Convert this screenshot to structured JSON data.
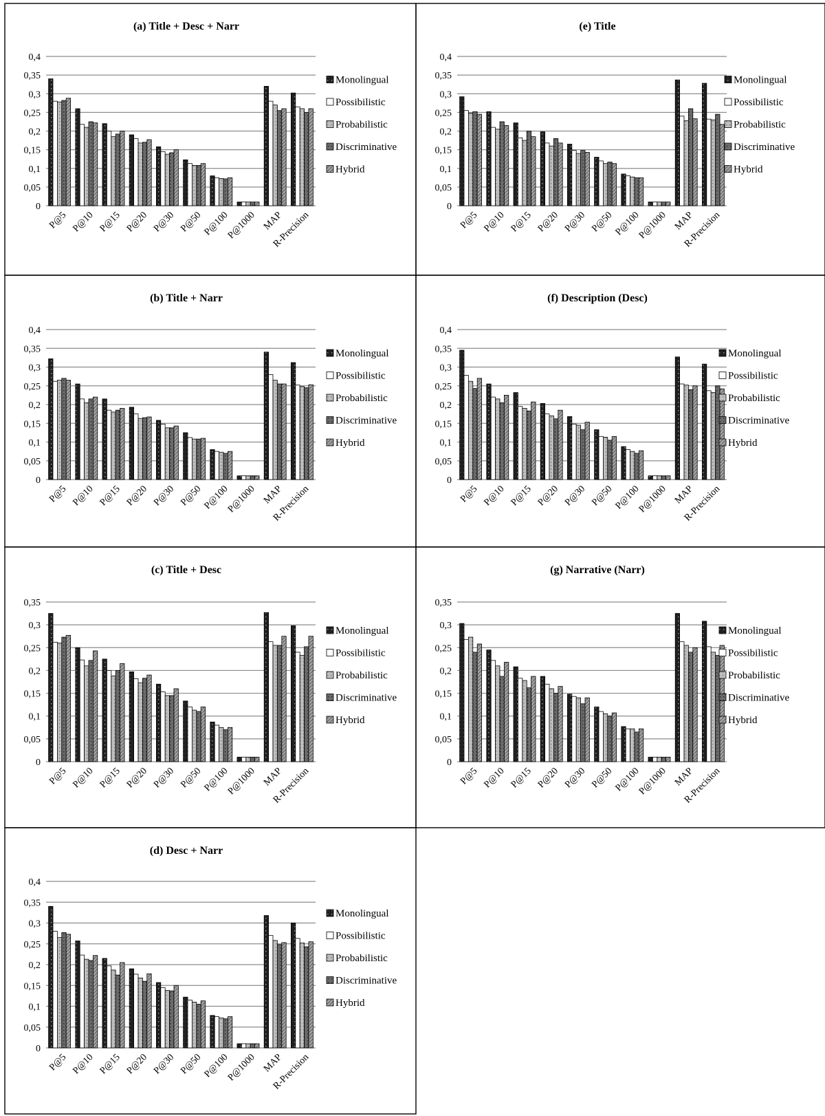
{
  "chart_data": [
    {
      "id": "a",
      "type": "bar",
      "title": "(a) Title + Desc + Narr",
      "categories": [
        "P@5",
        "P@10",
        "P@15",
        "P@20",
        "P@30",
        "P@50",
        "P@100",
        "P@1000",
        "MAP",
        "R-Precision"
      ],
      "ylim": [
        0,
        0.4
      ],
      "yticks": [
        "0",
        "0,05",
        "0,1",
        "0,15",
        "0,2",
        "0,25",
        "0,3",
        "0,35",
        "0,4"
      ],
      "series": [
        {
          "name": "Monolingual",
          "values": [
            0.34,
            0.26,
            0.22,
            0.19,
            0.158,
            0.123,
            0.08,
            0.01,
            0.32,
            0.302
          ]
        },
        {
          "name": "Possibilistic",
          "values": [
            0.28,
            0.218,
            0.2,
            0.18,
            0.145,
            0.113,
            0.075,
            0.01,
            0.28,
            0.265
          ]
        },
        {
          "name": "Probabilistic",
          "values": [
            0.278,
            0.21,
            0.185,
            0.168,
            0.138,
            0.108,
            0.073,
            0.01,
            0.27,
            0.26
          ]
        },
        {
          "name": "Discriminative",
          "values": [
            0.282,
            0.225,
            0.192,
            0.17,
            0.142,
            0.108,
            0.072,
            0.01,
            0.255,
            0.25
          ]
        },
        {
          "name": "Hybrid",
          "values": [
            0.288,
            0.222,
            0.2,
            0.177,
            0.15,
            0.113,
            0.075,
            0.01,
            0.26,
            0.26
          ]
        }
      ],
      "legend": "right",
      "grid": true
    },
    {
      "id": "e",
      "type": "bar",
      "title": "(e) Title",
      "categories": [
        "P@5",
        "P@10",
        "P@15",
        "P@20",
        "P@30",
        "P@50",
        "P@100",
        "P@1000",
        "MAP",
        "R-Precision"
      ],
      "ylim": [
        0,
        0.4
      ],
      "yticks": [
        "0",
        "0,05",
        "0,1",
        "0,15",
        "0,2",
        "0,25",
        "0,3",
        "0,35",
        "0,4"
      ],
      "series": [
        {
          "name": "Monolingual",
          "values": [
            0.292,
            0.252,
            0.222,
            0.198,
            0.165,
            0.13,
            0.085,
            0.01,
            0.337,
            0.328
          ]
        },
        {
          "name": "Possibilistic",
          "values": [
            0.255,
            0.21,
            0.182,
            0.168,
            0.148,
            0.12,
            0.08,
            0.01,
            0.24,
            0.232
          ]
        },
        {
          "name": "Probabilistic",
          "values": [
            0.248,
            0.205,
            0.175,
            0.16,
            0.14,
            0.113,
            0.077,
            0.01,
            0.228,
            0.23
          ]
        },
        {
          "name": "Discriminative",
          "values": [
            0.252,
            0.225,
            0.2,
            0.18,
            0.148,
            0.117,
            0.075,
            0.01,
            0.26,
            0.245
          ]
        },
        {
          "name": "Hybrid",
          "values": [
            0.245,
            0.215,
            0.185,
            0.168,
            0.143,
            0.113,
            0.075,
            0.01,
            0.233,
            0.218
          ]
        }
      ],
      "legend": "right",
      "grid": true
    },
    {
      "id": "b",
      "type": "bar",
      "title": "(b) Title + Narr",
      "categories": [
        "P@5",
        "P@10",
        "P@15",
        "P@20",
        "P@30",
        "P@50",
        "P@100",
        "P@1000",
        "MAP",
        "R-Precision"
      ],
      "ylim": [
        0,
        0.4
      ],
      "yticks": [
        "0",
        "0,05",
        "0,1",
        "0,15",
        "0,2",
        "0,25",
        "0,3",
        "0,35",
        "0,4"
      ],
      "series": [
        {
          "name": "Monolingual",
          "values": [
            0.322,
            0.255,
            0.215,
            0.193,
            0.158,
            0.125,
            0.08,
            0.01,
            0.34,
            0.312
          ]
        },
        {
          "name": "Possibilistic",
          "values": [
            0.262,
            0.215,
            0.185,
            0.175,
            0.148,
            0.112,
            0.075,
            0.01,
            0.28,
            0.252
          ]
        },
        {
          "name": "Probabilistic",
          "values": [
            0.265,
            0.205,
            0.18,
            0.163,
            0.138,
            0.108,
            0.073,
            0.01,
            0.265,
            0.248
          ]
        },
        {
          "name": "Discriminative",
          "values": [
            0.27,
            0.215,
            0.185,
            0.165,
            0.138,
            0.108,
            0.07,
            0.01,
            0.255,
            0.245
          ]
        },
        {
          "name": "Hybrid",
          "values": [
            0.265,
            0.22,
            0.19,
            0.167,
            0.143,
            0.11,
            0.075,
            0.01,
            0.255,
            0.253
          ]
        }
      ],
      "legend": "right",
      "grid": true
    },
    {
      "id": "f",
      "type": "bar",
      "title": "(f) Description (Desc)",
      "categories": [
        "P@5",
        "P@10",
        "P@15",
        "P@20",
        "P@30",
        "P@50",
        "P@100",
        "P@1000",
        "MAP",
        "R-Precision"
      ],
      "ylim": [
        0,
        0.4
      ],
      "yticks": [
        "0",
        "0,05",
        "0,1",
        "0,15",
        "0,2",
        "0,25",
        "0,3",
        "0,35",
        "0,4"
      ],
      "series": [
        {
          "name": "Monolingual",
          "values": [
            0.345,
            0.255,
            0.232,
            0.203,
            0.168,
            0.133,
            0.088,
            0.01,
            0.327,
            0.308
          ]
        },
        {
          "name": "Possibilistic",
          "values": [
            0.278,
            0.22,
            0.195,
            0.175,
            0.148,
            0.115,
            0.08,
            0.01,
            0.255,
            0.237
          ]
        },
        {
          "name": "Probabilistic",
          "values": [
            0.262,
            0.215,
            0.19,
            0.17,
            0.145,
            0.113,
            0.075,
            0.01,
            0.252,
            0.232
          ]
        },
        {
          "name": "Discriminative",
          "values": [
            0.243,
            0.205,
            0.183,
            0.162,
            0.133,
            0.105,
            0.07,
            0.01,
            0.24,
            0.25
          ]
        },
        {
          "name": "Hybrid",
          "values": [
            0.27,
            0.225,
            0.207,
            0.185,
            0.153,
            0.115,
            0.077,
            0.01,
            0.25,
            0.242
          ]
        }
      ],
      "legend": "right",
      "grid": true
    },
    {
      "id": "c",
      "type": "bar",
      "title": "(c) Title + Desc",
      "categories": [
        "P@5",
        "P@10",
        "P@15",
        "P@20",
        "P@30",
        "P@50",
        "P@100",
        "P@1000",
        "MAP",
        "R-Precision"
      ],
      "ylim": [
        0,
        0.35
      ],
      "yticks": [
        "0",
        "0,05",
        "0,1",
        "0,15",
        "0,2",
        "0,25",
        "0,3",
        "0,35"
      ],
      "series": [
        {
          "name": "Monolingual",
          "values": [
            0.325,
            0.25,
            0.225,
            0.197,
            0.17,
            0.133,
            0.087,
            0.01,
            0.327,
            0.298
          ]
        },
        {
          "name": "Possibilistic",
          "values": [
            0.262,
            0.223,
            0.2,
            0.182,
            0.153,
            0.12,
            0.08,
            0.01,
            0.263,
            0.24
          ]
        },
        {
          "name": "Probabilistic",
          "values": [
            0.26,
            0.21,
            0.188,
            0.173,
            0.145,
            0.113,
            0.075,
            0.01,
            0.255,
            0.233
          ]
        },
        {
          "name": "Discriminative",
          "values": [
            0.273,
            0.222,
            0.2,
            0.183,
            0.145,
            0.11,
            0.07,
            0.01,
            0.255,
            0.252
          ]
        },
        {
          "name": "Hybrid",
          "values": [
            0.277,
            0.243,
            0.215,
            0.19,
            0.16,
            0.12,
            0.075,
            0.01,
            0.275,
            0.275
          ]
        }
      ],
      "legend": "right",
      "grid": true
    },
    {
      "id": "g",
      "type": "bar",
      "title": "(g) Narrative (Narr)",
      "categories": [
        "P@5",
        "P@10",
        "P@15",
        "P@20",
        "P@30",
        "P@50",
        "P@100",
        "P@1000",
        "MAP",
        "R-Precision"
      ],
      "ylim": [
        0,
        0.35
      ],
      "yticks": [
        "0",
        "0,05",
        "0,1",
        "0,15",
        "0,2",
        "0,25",
        "0,3",
        "0,35"
      ],
      "series": [
        {
          "name": "Monolingual",
          "values": [
            0.303,
            0.245,
            0.208,
            0.187,
            0.148,
            0.12,
            0.077,
            0.01,
            0.325,
            0.308
          ]
        },
        {
          "name": "Possibilistic",
          "values": [
            0.268,
            0.222,
            0.183,
            0.17,
            0.143,
            0.11,
            0.072,
            0.01,
            0.263,
            0.252
          ]
        },
        {
          "name": "Probabilistic",
          "values": [
            0.273,
            0.21,
            0.178,
            0.16,
            0.14,
            0.105,
            0.072,
            0.01,
            0.255,
            0.24
          ]
        },
        {
          "name": "Discriminative",
          "values": [
            0.24,
            0.187,
            0.162,
            0.15,
            0.127,
            0.1,
            0.065,
            0.01,
            0.24,
            0.233
          ]
        },
        {
          "name": "Hybrid",
          "values": [
            0.258,
            0.218,
            0.187,
            0.165,
            0.14,
            0.107,
            0.072,
            0.01,
            0.25,
            0.255
          ]
        }
      ],
      "legend": "right",
      "grid": true
    },
    {
      "id": "d",
      "type": "bar",
      "title": "(d) Desc + Narr",
      "categories": [
        "P@5",
        "P@10",
        "P@15",
        "P@20",
        "P@30",
        "P@50",
        "P@100",
        "P@1000",
        "MAP",
        "R-Precision"
      ],
      "ylim": [
        0,
        0.4
      ],
      "yticks": [
        "0",
        "0,05",
        "0,1",
        "0,15",
        "0,2",
        "0,25",
        "0,3",
        "0,35",
        "0,4"
      ],
      "series": [
        {
          "name": "Monolingual",
          "values": [
            0.34,
            0.257,
            0.215,
            0.19,
            0.157,
            0.122,
            0.078,
            0.01,
            0.318,
            0.3
          ]
        },
        {
          "name": "Possibilistic",
          "values": [
            0.28,
            0.223,
            0.197,
            0.177,
            0.145,
            0.115,
            0.075,
            0.01,
            0.27,
            0.263
          ]
        },
        {
          "name": "Probabilistic",
          "values": [
            0.265,
            0.213,
            0.187,
            0.168,
            0.138,
            0.11,
            0.072,
            0.01,
            0.258,
            0.252
          ]
        },
        {
          "name": "Discriminative",
          "values": [
            0.277,
            0.21,
            0.175,
            0.16,
            0.137,
            0.105,
            0.07,
            0.01,
            0.248,
            0.243
          ]
        },
        {
          "name": "Hybrid",
          "values": [
            0.273,
            0.222,
            0.205,
            0.178,
            0.15,
            0.113,
            0.075,
            0.01,
            0.253,
            0.255
          ]
        }
      ],
      "legend": "right",
      "grid": true
    }
  ],
  "colors": {
    "Monolingual": "#202020",
    "Possibilistic": "#ffffff",
    "Probabilistic": "#b4b4b4",
    "Discriminative": "#6e6e6e",
    "Hybrid": "#9a9a9a"
  }
}
